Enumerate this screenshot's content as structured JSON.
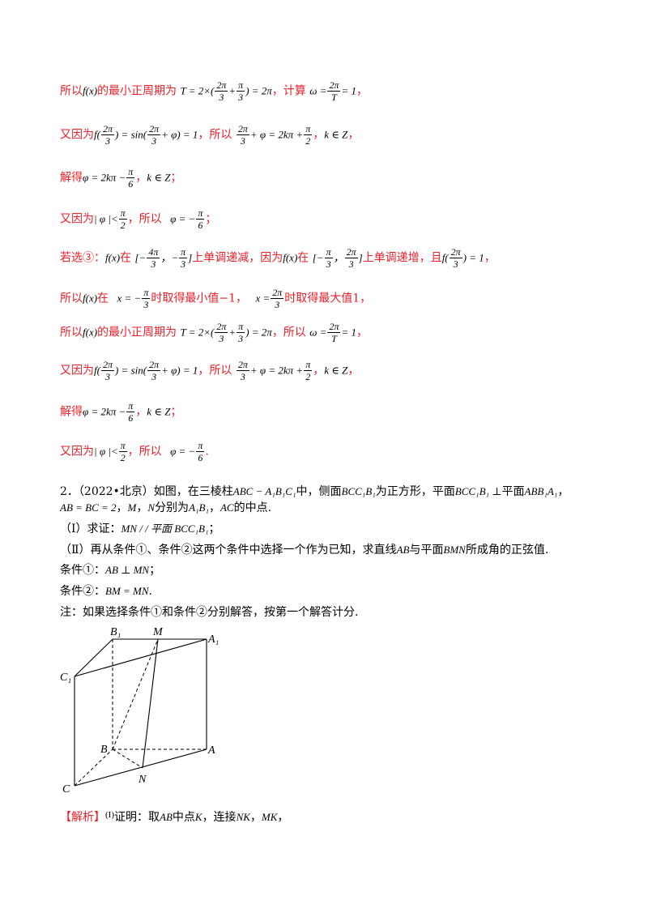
{
  "lines": {
    "l1": {
      "a": "所以",
      "f": "f(x)",
      "b": "的最小正周期为",
      "T": "T = 2×(",
      "p1n": "2π",
      "p1d": "3",
      "plus": "+",
      "p2n": "π",
      "p2d": "3",
      "tail": ") = 2π",
      "c": "，计算",
      "om": "ω =",
      "on": "2π",
      "od": "T",
      "oe": "= 1",
      "d": "，"
    },
    "l2": {
      "a": "又因为",
      "f": "f(",
      "fn": "2π",
      "fd": "3",
      "fm": ") = sin(",
      "sn": "2π",
      "sd": "3",
      "se": "+ φ) = 1",
      "b": "，所以",
      "en": "2π",
      "ed": "3",
      "ee": "+ φ = 2kπ +",
      "pn": "π",
      "pd": "2",
      "c": "，",
      "k": "k ∈ Z",
      "d": "，"
    },
    "l3": {
      "a": "解得",
      "e": "φ = 2kπ −",
      "n": "π",
      "dd": "6",
      "c": "，",
      "k": "k ∈ Z",
      "d": "；"
    },
    "l4": {
      "a": "又因为",
      "e": "| φ |<",
      "n": "π",
      "dd": "2",
      "b": "，所以",
      "e2": "φ = −",
      "n2": "π",
      "d2": "6",
      "c": "；"
    },
    "l5": {
      "a": "若选③：",
      "f": "f(x)",
      "b": "在",
      "i1": "[−",
      "i1n": "4π",
      "i1d": "3",
      "comma": "，",
      "i2": "−",
      "i2n": "π",
      "i2d": "3",
      "i2e": "]",
      "c": "上单调递减，因为",
      "f2": "f(x)",
      "d": "在",
      "j1": "[−",
      "j1n": "π",
      "j1d": "3",
      "j2n": "2π",
      "j2d": "3",
      "j2e": "]",
      "e": "上单调递增，且",
      "g": "f(",
      "gn": "2π",
      "gd": "3",
      "ge": ") = 1",
      "h": "，"
    },
    "l6": {
      "a": "所以",
      "f": "f(x)",
      "b": "在",
      "x1": "x = −",
      "x1n": "π",
      "x1d": "3",
      "c": "时取得最小值",
      "v1": "−1",
      "d": "，",
      "x2": "x =",
      "x2n": "2π",
      "x2d": "3",
      "e": "时取得最大值",
      "v2": "1",
      "g": "，"
    },
    "l7": {
      "a": "所以",
      "f": "f(x)",
      "b": "的最小正周期为",
      "T": "T = 2×(",
      "p1n": "2π",
      "p1d": "3",
      "plus": "+",
      "p2n": "π",
      "p2d": "3",
      "tail": ") = 2π",
      "c": "，所以",
      "om": "ω =",
      "on": "2π",
      "od": "T",
      "oe": "= 1",
      "d": "，"
    },
    "l8": {
      "a": "又因为",
      "f": "f(",
      "fn": "2π",
      "fd": "3",
      "fm": ") = sin(",
      "sn": "2π",
      "sd": "3",
      "se": "+ φ) = 1",
      "b": "，所以",
      "en": "2π",
      "ed": "3",
      "ee": "+ φ = 2kπ +",
      "pn": "π",
      "pd": "2",
      "c": "，",
      "k": "k ∈ Z",
      "d": "，"
    },
    "l9": {
      "a": "解得",
      "e": "φ = 2kπ −",
      "n": "π",
      "dd": "6",
      "c": "，",
      "k": "k ∈ Z",
      "d": "；"
    },
    "l10": {
      "a": "又因为",
      "e": "| φ |<",
      "n": "π",
      "dd": "2",
      "b": "，所以",
      "e2": "φ = −",
      "n2": "π",
      "d2": "6",
      "c": "."
    }
  },
  "problem": {
    "p1": {
      "a": "2．（2022•北京）如图，在三棱柱",
      "m1": "ABC − A₁B₁C₁",
      "b": "中，侧面",
      "m2": "BCC₁B₁",
      "c": "为正方形，平面",
      "m3": "BCC₁B₁ ⊥",
      "d": "平面",
      "m4": "ABB₁A₁",
      "e": "，"
    },
    "p2": {
      "m1": "AB = BC = 2",
      "a": "，",
      "m2": "M",
      "b": "，",
      "m3": "N",
      "c": "分别为",
      "m4": "A₁B₁",
      "d": "，",
      "m5": "AC",
      "e": "的中点."
    },
    "p3": {
      "a": "（Ⅰ）求证：",
      "m": "MN / / 平面 BCC₁B₁",
      "b": "；"
    },
    "p4": {
      "a": "（Ⅱ）再从条件①、条件②这两个条件中选择一个作为已知，求直线",
      "m1": "AB",
      "b": "与平面",
      "m2": "BMN",
      "c": "所成角的正弦值."
    },
    "p5": {
      "a": "条件①：",
      "m": "AB ⊥ MN",
      "b": "；"
    },
    "p6": {
      "a": "条件②：",
      "m": "BM = MN",
      "b": "."
    },
    "p7": {
      "a": "注：如果选择条件①和条件②分别解答，按第一个解答计分."
    }
  },
  "figure": {
    "B1": "B₁",
    "M": "M",
    "A1": "A₁",
    "C1": "C₁",
    "B": "B",
    "A": "A",
    "C": "C",
    "N": "N"
  },
  "analysis": {
    "tag": "【解析】",
    "num": "(I)",
    "a": "证明：取",
    "m1": "AB",
    "b": "中点",
    "m2": "K",
    "c": "，连接",
    "m3": "NK",
    "d": "，",
    "m4": "MK",
    "e": "，"
  }
}
